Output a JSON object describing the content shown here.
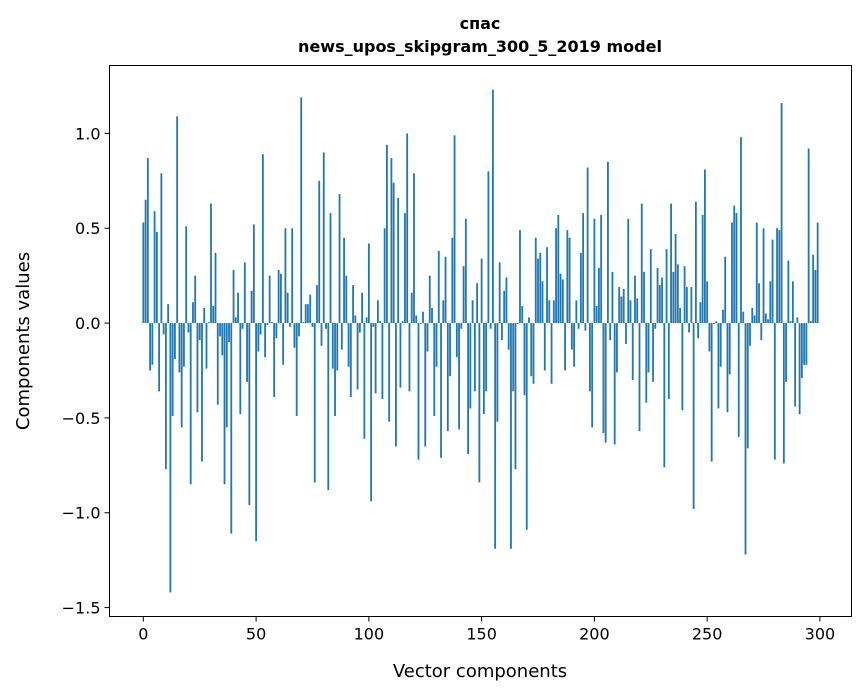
{
  "chart_data": {
    "type": "bar",
    "title": [
      "спас",
      "news_upos_skipgram_300_5_2019 model"
    ],
    "xlabel": "Vector components",
    "ylabel": "Components values",
    "xlim": [
      -15,
      314
    ],
    "ylim": [
      -1.547,
      1.358
    ],
    "xticks": [
      0,
      50,
      100,
      150,
      200,
      250,
      300
    ],
    "xticklabels": [
      "0",
      "50",
      "100",
      "150",
      "200",
      "250",
      "300"
    ],
    "yticks": [
      -1.5,
      -1.0,
      -0.5,
      0.0,
      0.5,
      1.0
    ],
    "yticklabels": [
      "−1.5",
      "−1.0",
      "−0.5",
      "0.0",
      "0.5",
      "1.0"
    ],
    "grid": false,
    "bar_color": "#1f77b4",
    "values": [
      0.53,
      0.65,
      0.87,
      -0.25,
      -0.22,
      0.59,
      0.48,
      -0.36,
      0.79,
      -0.06,
      -0.77,
      0.1,
      -1.42,
      -0.49,
      -0.19,
      1.09,
      -0.26,
      -0.55,
      -0.23,
      0.51,
      -0.05,
      -0.85,
      0.11,
      0.25,
      -0.47,
      -0.09,
      -0.73,
      0.08,
      -0.24,
      0.005,
      0.63,
      0.09,
      0.37,
      -0.43,
      -0.07,
      -0.17,
      -0.85,
      -0.55,
      -0.1,
      -1.11,
      0.28,
      0.03,
      0.16,
      -0.48,
      -0.03,
      0.32,
      -0.31,
      -0.96,
      0.17,
      0.52,
      -1.15,
      -0.15,
      -0.06,
      0.89,
      -0.18,
      -0.01,
      0.25,
      0.005,
      -0.39,
      -0.08,
      0.28,
      0.26,
      -0.22,
      0.5,
      0.16,
      -0.02,
      0.5,
      -0.13,
      -0.49,
      -0.07,
      1.19,
      0.005,
      0.1,
      0.1,
      0.15,
      -0.02,
      -0.84,
      0.2,
      0.75,
      -0.12,
      0.9,
      -0.03,
      -0.88,
      0.58,
      -0.24,
      -0.49,
      -0.25,
      0.68,
      -0.14,
      0.45,
      0.25,
      -0.23,
      -0.39,
      0.2,
      0.04,
      -0.35,
      -0.05,
      0.16,
      -0.61,
      0.03,
      0.42,
      -0.94,
      -0.02,
      -0.37,
      0.12,
      0.01,
      -0.4,
      0.5,
      0.94,
      -0.52,
      0.87,
      0.74,
      -0.65,
      0.66,
      -0.34,
      0.01,
      0.58,
      1.0,
      -0.36,
      0.16,
      0.79,
      0.04,
      -0.72,
      -0.005,
      0.06,
      -0.65,
      -0.15,
      0.25,
      0.08,
      -0.49,
      -0.23,
      0.38,
      -0.71,
      0.12,
      0.35,
      -0.57,
      -0.28,
      0.45,
      0.99,
      -0.18,
      -0.56,
      -0.03,
      0.3,
      0.55,
      -0.69,
      -0.45,
      0.12,
      -0.36,
      0.21,
      -0.84,
      0.34,
      -0.48,
      -0.36,
      0.8,
      -0.03,
      1.23,
      -1.19,
      -0.52,
      0.32,
      -0.09,
      0.17,
      0.24,
      -0.14,
      -1.19,
      -0.36,
      -0.77,
      -0.005,
      0.49,
      0.09,
      -0.38,
      -1.09,
      0.03,
      -0.28,
      -0.32,
      0.45,
      0.34,
      0.37,
      0.22,
      -0.25,
      0.4,
      0.12,
      -0.32,
      0.12,
      0.5,
      0.57,
      0.26,
      0.23,
      -0.25,
      0.49,
      0.45,
      -0.14,
      -0.23,
      0.12,
      -0.03,
      0.37,
      0.58,
      -0.04,
      0.82,
      -0.36,
      -0.55,
      0.55,
      0.09,
      0.29,
      0.57,
      -0.58,
      -0.63,
      0.85,
      -0.09,
      0.27,
      -0.64,
      -0.26,
      0.19,
      0.14,
      0.18,
      -0.11,
      0.55,
      0.12,
      -0.3,
      0.25,
      0.13,
      -0.57,
      0.63,
      0.27,
      -0.42,
      -0.26,
      0.39,
      -0.31,
      -0.03,
      0.29,
      0.2,
      0.24,
      -0.76,
      0.39,
      -0.4,
      0.63,
      0.27,
      0.47,
      0.31,
      0.08,
      -0.46,
      0.3,
      0.19,
      -0.05,
      0.19,
      -0.98,
      0.64,
      -0.08,
      0.11,
      0.57,
      0.81,
      0.22,
      -0.15,
      -0.73,
      -0.005,
      0.01,
      -0.45,
      -0.23,
      0.07,
      0.35,
      -0.47,
      -0.27,
      0.53,
      0.62,
      0.58,
      -0.6,
      0.98,
      0.06,
      -1.22,
      -0.66,
      -0.12,
      0.08,
      0.04,
      0.53,
      0.21,
      -0.09,
      0.5,
      0.05,
      0.02,
      0.22,
      0.44,
      -0.72,
      0.5,
      0.49,
      1.16,
      -0.74,
      -0.31,
      0.33,
      0.01,
      0.22,
      -0.44,
      0.03,
      -0.48,
      -0.29,
      -0.22,
      -0.22,
      0.92,
      0.01,
      0.36,
      0.28,
      0.53
    ]
  }
}
